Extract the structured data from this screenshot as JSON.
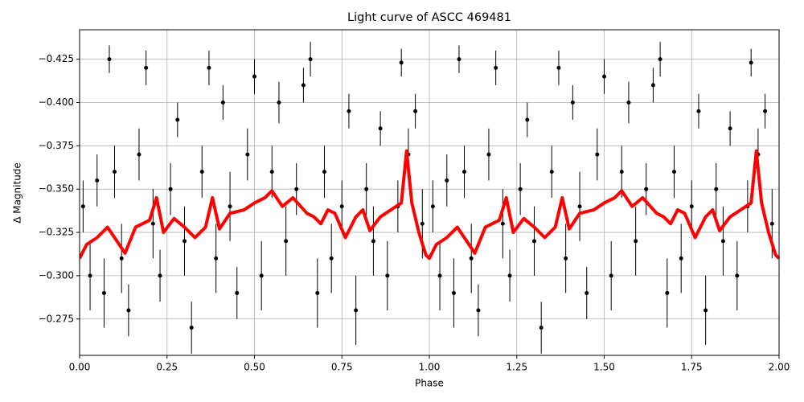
{
  "chart_data": {
    "type": "scatter",
    "title": "Light curve of ASCC 469481",
    "xlabel": "Phase",
    "ylabel": "Δ Magnitude",
    "xlim": [
      0,
      2
    ],
    "ylim": [
      -0.254,
      -0.442
    ],
    "xticks": [
      {
        "value": 0,
        "label": "0.00"
      },
      {
        "value": 0.25,
        "label": "0.25"
      },
      {
        "value": 0.5,
        "label": "0.50"
      },
      {
        "value": 0.75,
        "label": "0.75"
      },
      {
        "value": 1,
        "label": "1.00"
      },
      {
        "value": 1.25,
        "label": "1.25"
      },
      {
        "value": 1.5,
        "label": "1.50"
      },
      {
        "value": 1.75,
        "label": "1.75"
      },
      {
        "value": 2,
        "label": "2.00"
      }
    ],
    "yticks": [
      {
        "value": -0.425,
        "label": "−0.425"
      },
      {
        "value": -0.4,
        "label": "−0.400"
      },
      {
        "value": -0.375,
        "label": "−0.375"
      },
      {
        "value": -0.35,
        "label": "−0.350"
      },
      {
        "value": -0.325,
        "label": "−0.325"
      },
      {
        "value": -0.3,
        "label": "−0.300"
      },
      {
        "value": -0.275,
        "label": "−0.275"
      }
    ],
    "grid": true,
    "series": [
      {
        "kind": "errorbar",
        "color": "#000000",
        "x": [
          0.01,
          0.03,
          0.05,
          0.07,
          0.085,
          0.1,
          0.12,
          0.14,
          0.17,
          0.19,
          0.21,
          0.23,
          0.26,
          0.28,
          0.3,
          0.32,
          0.35,
          0.37,
          0.39,
          0.41,
          0.43,
          0.45,
          0.48,
          0.5,
          0.52,
          0.55,
          0.57,
          0.59,
          0.62,
          0.64,
          0.66,
          0.68,
          0.7,
          0.72,
          0.75,
          0.77,
          0.79,
          0.82,
          0.84,
          0.86,
          0.88,
          0.91,
          0.92,
          0.94,
          0.96,
          0.98,
          1.01,
          1.03,
          1.05,
          1.07,
          1.085,
          1.1,
          1.12,
          1.14,
          1.17,
          1.19,
          1.21,
          1.23,
          1.26,
          1.28,
          1.3,
          1.32,
          1.35,
          1.37,
          1.39,
          1.41,
          1.43,
          1.45,
          1.48,
          1.5,
          1.52,
          1.55,
          1.57,
          1.59,
          1.62,
          1.64,
          1.66,
          1.68,
          1.7,
          1.72,
          1.75,
          1.77,
          1.79,
          1.82,
          1.84,
          1.86,
          1.88,
          1.91,
          1.92,
          1.94,
          1.96,
          1.98
        ],
        "values": [
          -0.34,
          -0.3,
          -0.355,
          -0.29,
          -0.425,
          -0.36,
          -0.31,
          -0.28,
          -0.37,
          -0.42,
          -0.33,
          -0.3,
          -0.35,
          -0.39,
          -0.32,
          -0.27,
          -0.36,
          -0.42,
          -0.31,
          -0.4,
          -0.34,
          -0.29,
          -0.37,
          -0.415,
          -0.3,
          -0.36,
          -0.4,
          -0.32,
          -0.35,
          -0.41,
          -0.425,
          -0.29,
          -0.36,
          -0.31,
          -0.34,
          -0.395,
          -0.28,
          -0.35,
          -0.32,
          -0.385,
          -0.3,
          -0.34,
          -0.423,
          -0.37,
          -0.395,
          -0.33,
          -0.34,
          -0.3,
          -0.355,
          -0.29,
          -0.425,
          -0.36,
          -0.31,
          -0.28,
          -0.37,
          -0.42,
          -0.33,
          -0.3,
          -0.35,
          -0.39,
          -0.32,
          -0.27,
          -0.36,
          -0.42,
          -0.31,
          -0.4,
          -0.34,
          -0.29,
          -0.37,
          -0.415,
          -0.3,
          -0.36,
          -0.4,
          -0.32,
          -0.35,
          -0.41,
          -0.425,
          -0.29,
          -0.36,
          -0.31,
          -0.34,
          -0.395,
          -0.28,
          -0.35,
          -0.32,
          -0.385,
          -0.3,
          -0.34,
          -0.423,
          -0.37,
          -0.395,
          -0.33
        ],
        "errors": [
          0.015,
          0.02,
          0.015,
          0.02,
          0.008,
          0.015,
          0.02,
          0.015,
          0.015,
          0.01,
          0.02,
          0.015,
          0.015,
          0.01,
          0.02,
          0.015,
          0.015,
          0.01,
          0.02,
          0.01,
          0.02,
          0.015,
          0.015,
          0.01,
          0.02,
          0.015,
          0.012,
          0.02,
          0.015,
          0.01,
          0.01,
          0.02,
          0.015,
          0.02,
          0.015,
          0.01,
          0.02,
          0.015,
          0.02,
          0.01,
          0.02,
          0.015,
          0.008,
          0.015,
          0.01,
          0.02,
          0.015,
          0.02,
          0.015,
          0.02,
          0.008,
          0.015,
          0.02,
          0.015,
          0.015,
          0.01,
          0.02,
          0.015,
          0.015,
          0.01,
          0.02,
          0.015,
          0.015,
          0.01,
          0.02,
          0.01,
          0.02,
          0.015,
          0.015,
          0.01,
          0.02,
          0.015,
          0.012,
          0.02,
          0.015,
          0.01,
          0.01,
          0.02,
          0.015,
          0.02,
          0.015,
          0.01,
          0.02,
          0.015,
          0.02,
          0.01,
          0.02,
          0.015,
          0.008,
          0.015,
          0.01,
          0.02
        ]
      },
      {
        "kind": "line",
        "color": "#ff0000",
        "x": [
          0.0,
          0.02,
          0.05,
          0.08,
          0.1,
          0.13,
          0.16,
          0.2,
          0.22,
          0.24,
          0.27,
          0.3,
          0.33,
          0.36,
          0.38,
          0.4,
          0.43,
          0.47,
          0.5,
          0.53,
          0.55,
          0.58,
          0.61,
          0.65,
          0.67,
          0.69,
          0.71,
          0.73,
          0.76,
          0.79,
          0.81,
          0.83,
          0.86,
          0.89,
          0.92,
          0.935,
          0.95,
          0.97,
          0.99,
          1.0,
          1.02,
          1.05,
          1.08,
          1.1,
          1.13,
          1.16,
          1.2,
          1.22,
          1.24,
          1.27,
          1.3,
          1.33,
          1.36,
          1.38,
          1.4,
          1.43,
          1.47,
          1.5,
          1.53,
          1.55,
          1.58,
          1.61,
          1.65,
          1.67,
          1.69,
          1.71,
          1.73,
          1.76,
          1.79,
          1.81,
          1.83,
          1.86,
          1.89,
          1.92,
          1.935,
          1.95,
          1.97,
          1.99,
          2.0
        ],
        "values": [
          -0.31,
          -0.318,
          -0.322,
          -0.328,
          -0.322,
          -0.313,
          -0.328,
          -0.332,
          -0.345,
          -0.325,
          -0.333,
          -0.328,
          -0.322,
          -0.328,
          -0.345,
          -0.327,
          -0.336,
          -0.338,
          -0.342,
          -0.345,
          -0.349,
          -0.34,
          -0.345,
          -0.336,
          -0.334,
          -0.33,
          -0.338,
          -0.336,
          -0.322,
          -0.334,
          -0.338,
          -0.326,
          -0.334,
          -0.338,
          -0.342,
          -0.372,
          -0.342,
          -0.325,
          -0.312,
          -0.31,
          -0.318,
          -0.322,
          -0.328,
          -0.322,
          -0.313,
          -0.328,
          -0.332,
          -0.345,
          -0.325,
          -0.333,
          -0.328,
          -0.322,
          -0.328,
          -0.345,
          -0.327,
          -0.336,
          -0.338,
          -0.342,
          -0.345,
          -0.349,
          -0.34,
          -0.345,
          -0.336,
          -0.334,
          -0.33,
          -0.338,
          -0.336,
          -0.322,
          -0.334,
          -0.338,
          -0.326,
          -0.334,
          -0.338,
          -0.342,
          -0.372,
          -0.342,
          -0.325,
          -0.312,
          -0.31
        ]
      }
    ]
  }
}
